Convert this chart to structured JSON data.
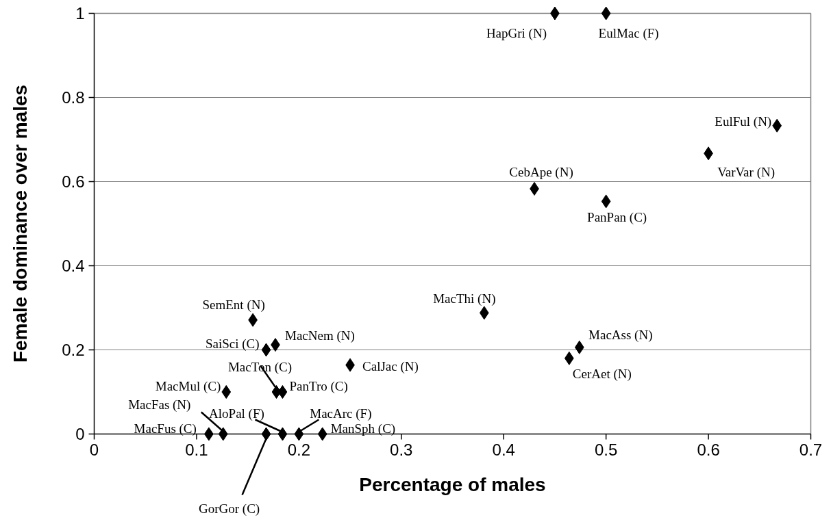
{
  "chart_data": {
    "type": "scatter",
    "xlabel": "Percentage of males",
    "ylabel": "Female dominance over males",
    "xlim": [
      0,
      0.7
    ],
    "xticks": [
      0,
      0.1,
      0.2,
      0.3,
      0.4,
      0.5,
      0.6,
      0.7
    ],
    "ylim": [
      0,
      1
    ],
    "yticks": [
      0,
      0.2,
      0.4,
      0.6,
      0.8,
      1
    ],
    "grid": "y",
    "marker": "diamond",
    "series": [
      {
        "color": "#000000",
        "x": [
          0.45,
          0.5,
          0.667,
          0.6,
          0.43,
          0.5,
          0.381,
          0.474,
          0.464,
          0.155,
          0.168,
          0.177,
          0.25,
          0.129,
          0.178,
          0.184,
          0.126,
          0.112,
          0.184,
          0.2,
          0.223,
          0.168
        ],
        "values": [
          1,
          1,
          0.733,
          0.667,
          0.583,
          0.553,
          0.288,
          0.206,
          0.18,
          0.271,
          0.2,
          0.212,
          0.164,
          0.1,
          0.1,
          0.1,
          0,
          0,
          0,
          0,
          0,
          0
        ]
      }
    ],
    "annotations": [
      {
        "text": "HapGri (N)",
        "x": 0.45,
        "y": 1
      },
      {
        "text": "EulMac (F)",
        "x": 0.5,
        "y": 1
      },
      {
        "text": "EulFul (N)",
        "x": 0.667,
        "y": 0.733
      },
      {
        "text": "VarVar (N)",
        "x": 0.6,
        "y": 0.667
      },
      {
        "text": "CebApe (N)",
        "x": 0.43,
        "y": 0.583
      },
      {
        "text": "PanPan (C)",
        "x": 0.5,
        "y": 0.553
      },
      {
        "text": "MacThi (N)",
        "x": 0.381,
        "y": 0.288
      },
      {
        "text": "MacAss (N)",
        "x": 0.474,
        "y": 0.206
      },
      {
        "text": "CerAet (N)",
        "x": 0.464,
        "y": 0.18
      },
      {
        "text": "SemEnt (N)",
        "x": 0.155,
        "y": 0.271
      },
      {
        "text": "SaiSci (C)",
        "x": 0.168,
        "y": 0.2
      },
      {
        "text": "MacNem (N)",
        "x": 0.177,
        "y": 0.212
      },
      {
        "text": "CalJac (N)",
        "x": 0.25,
        "y": 0.164
      },
      {
        "text": "MacMul (C)",
        "x": 0.129,
        "y": 0.1
      },
      {
        "text": "MacTon (C)",
        "x": 0.178,
        "y": 0.1
      },
      {
        "text": "PanTro (C)",
        "x": 0.184,
        "y": 0.1
      },
      {
        "text": "MacFas (N)",
        "x": 0.126,
        "y": 0
      },
      {
        "text": "MacFus (C)",
        "x": 0.112,
        "y": 0
      },
      {
        "text": "AloPal (F)",
        "x": 0.184,
        "y": 0
      },
      {
        "text": "MacArc (F)",
        "x": 0.2,
        "y": 0
      },
      {
        "text": "ManSph (C)",
        "x": 0.223,
        "y": 0
      },
      {
        "text": "GorGor (C)",
        "x": 0.168,
        "y": 0
      }
    ]
  }
}
